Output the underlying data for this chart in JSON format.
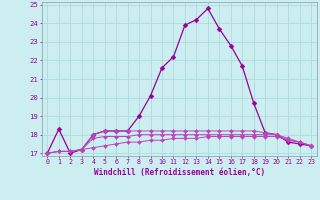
{
  "xlabel": "Windchill (Refroidissement éolien,°C)",
  "xlim": [
    -0.5,
    23.5
  ],
  "ylim": [
    16.85,
    25.15
  ],
  "yticks": [
    17,
    18,
    19,
    20,
    21,
    22,
    23,
    24,
    25
  ],
  "xticks": [
    0,
    1,
    2,
    3,
    4,
    5,
    6,
    7,
    8,
    9,
    10,
    11,
    12,
    13,
    14,
    15,
    16,
    17,
    18,
    19,
    20,
    21,
    22,
    23
  ],
  "background_color": "#cceef0",
  "grid_color": "#aadddd",
  "line_color": "#990099",
  "line_color2": "#bb44bb",
  "series": [
    [
      17.0,
      18.3,
      17.0,
      17.2,
      18.0,
      18.2,
      18.2,
      18.2,
      19.0,
      20.1,
      21.6,
      22.2,
      23.9,
      24.2,
      24.8,
      23.7,
      22.8,
      21.7,
      19.7,
      18.1,
      18.0,
      17.6,
      17.5,
      17.4
    ],
    [
      17.0,
      17.1,
      17.1,
      17.2,
      17.3,
      17.4,
      17.5,
      17.6,
      17.6,
      17.7,
      17.7,
      17.8,
      17.8,
      17.8,
      17.9,
      17.9,
      17.9,
      17.9,
      17.9,
      17.9,
      17.9,
      17.7,
      17.6,
      17.4
    ],
    [
      17.0,
      17.1,
      17.1,
      17.2,
      17.8,
      17.9,
      17.9,
      17.9,
      18.0,
      18.0,
      18.0,
      18.0,
      18.0,
      18.0,
      18.0,
      18.0,
      18.0,
      18.0,
      18.0,
      18.0,
      18.0,
      17.8,
      17.6,
      17.4
    ],
    [
      17.0,
      17.1,
      17.1,
      17.2,
      18.0,
      18.2,
      18.2,
      18.2,
      18.2,
      18.2,
      18.2,
      18.2,
      18.2,
      18.2,
      18.2,
      18.2,
      18.2,
      18.2,
      18.2,
      18.1,
      18.0,
      17.7,
      17.6,
      17.4
    ]
  ]
}
